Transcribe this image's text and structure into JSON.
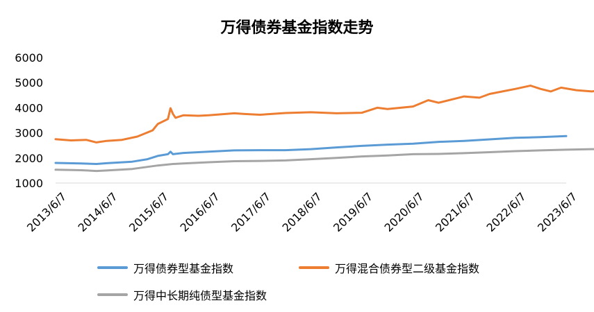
{
  "chart_data": {
    "type": "line",
    "title": "万得债券基金指数走势",
    "x_tick_labels": [
      "2013/6/7",
      "2014/6/7",
      "2015/6/7",
      "2016/6/7",
      "2017/6/7",
      "2018/6/7",
      "2019/6/7",
      "2020/6/7",
      "2021/6/7",
      "2022/6/7",
      "2023/6/7"
    ],
    "y_ticks": [
      1000,
      2000,
      3000,
      4000,
      5000,
      6000
    ],
    "ylim": [
      1000,
      6000
    ],
    "grid": false,
    "legend_position": "bottom",
    "series": [
      {
        "name": "万得债券型基金指数",
        "color": "#5B9BD5",
        "points": [
          [
            0.0,
            1800
          ],
          [
            0.5,
            1780
          ],
          [
            0.8,
            1760
          ],
          [
            1.0,
            1790
          ],
          [
            1.5,
            1850
          ],
          [
            1.8,
            1950
          ],
          [
            2.0,
            2080
          ],
          [
            2.2,
            2150
          ],
          [
            2.25,
            2250
          ],
          [
            2.3,
            2150
          ],
          [
            2.5,
            2200
          ],
          [
            3.0,
            2250
          ],
          [
            3.5,
            2300
          ],
          [
            4.0,
            2310
          ],
          [
            4.5,
            2310
          ],
          [
            5.0,
            2350
          ],
          [
            5.5,
            2420
          ],
          [
            6.0,
            2480
          ],
          [
            6.5,
            2530
          ],
          [
            7.0,
            2570
          ],
          [
            7.5,
            2640
          ],
          [
            8.0,
            2680
          ],
          [
            8.5,
            2740
          ],
          [
            9.0,
            2800
          ],
          [
            9.5,
            2830
          ],
          [
            10.0,
            2870
          ]
        ]
      },
      {
        "name": "万得混合债券型二级基金指数",
        "color": "#ED7D31",
        "points": [
          [
            0.0,
            2750
          ],
          [
            0.3,
            2700
          ],
          [
            0.6,
            2720
          ],
          [
            0.8,
            2620
          ],
          [
            1.0,
            2680
          ],
          [
            1.3,
            2720
          ],
          [
            1.6,
            2850
          ],
          [
            1.9,
            3100
          ],
          [
            2.0,
            3350
          ],
          [
            2.2,
            3550
          ],
          [
            2.25,
            3980
          ],
          [
            2.3,
            3750
          ],
          [
            2.35,
            3600
          ],
          [
            2.5,
            3700
          ],
          [
            2.8,
            3680
          ],
          [
            3.0,
            3700
          ],
          [
            3.5,
            3780
          ],
          [
            3.7,
            3750
          ],
          [
            4.0,
            3720
          ],
          [
            4.5,
            3790
          ],
          [
            5.0,
            3820
          ],
          [
            5.5,
            3780
          ],
          [
            6.0,
            3800
          ],
          [
            6.3,
            4000
          ],
          [
            6.5,
            3950
          ],
          [
            7.0,
            4050
          ],
          [
            7.3,
            4300
          ],
          [
            7.5,
            4200
          ],
          [
            8.0,
            4450
          ],
          [
            8.3,
            4400
          ],
          [
            8.5,
            4550
          ],
          [
            9.0,
            4750
          ],
          [
            9.3,
            4880
          ],
          [
            9.5,
            4750
          ],
          [
            9.7,
            4650
          ],
          [
            9.9,
            4800
          ],
          [
            10.2,
            4700
          ],
          [
            10.5,
            4650
          ],
          [
            10.8,
            4720
          ],
          [
            11.0,
            4700
          ]
        ]
      },
      {
        "name": "万得中长期纯债型基金指数",
        "color": "#A5A5A5",
        "points": [
          [
            0.0,
            1530
          ],
          [
            0.5,
            1510
          ],
          [
            0.8,
            1480
          ],
          [
            1.0,
            1500
          ],
          [
            1.5,
            1560
          ],
          [
            2.0,
            1700
          ],
          [
            2.3,
            1760
          ],
          [
            2.5,
            1780
          ],
          [
            3.0,
            1830
          ],
          [
            3.5,
            1870
          ],
          [
            4.0,
            1880
          ],
          [
            4.5,
            1900
          ],
          [
            5.0,
            1950
          ],
          [
            5.5,
            2000
          ],
          [
            6.0,
            2060
          ],
          [
            6.5,
            2100
          ],
          [
            7.0,
            2150
          ],
          [
            7.5,
            2160
          ],
          [
            8.0,
            2190
          ],
          [
            8.5,
            2230
          ],
          [
            9.0,
            2270
          ],
          [
            9.5,
            2300
          ],
          [
            10.0,
            2330
          ],
          [
            10.5,
            2350
          ],
          [
            11.0,
            2350
          ]
        ]
      }
    ]
  }
}
